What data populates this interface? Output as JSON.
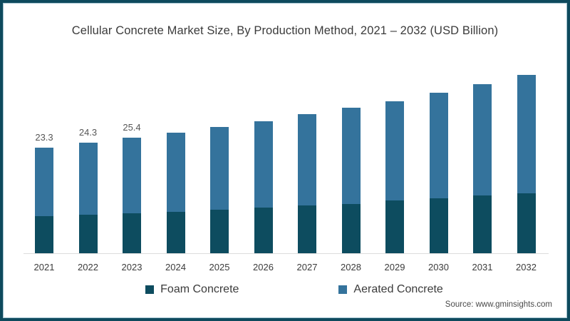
{
  "title": "Cellular Concrete Market Size, By Production Method, 2021 – 2032 (USD Billion)",
  "source": "Source: www.gminsights.com",
  "colors": {
    "frame": "#0e4a5d",
    "foam": "#0d4c5f",
    "aerated": "#34739c",
    "axis_line": "#dcdcdc"
  },
  "legend": {
    "items": [
      {
        "label": "Foam Concrete",
        "color": "#0d4c5f"
      },
      {
        "label": "Aerated Concrete",
        "color": "#34739c"
      }
    ]
  },
  "chart_data": {
    "type": "bar",
    "stacked": true,
    "title": "Cellular Concrete Market Size, By Production Method, 2021 – 2032 (USD Billion)",
    "xlabel": "",
    "ylabel": "USD Billion",
    "ylim": [
      0,
      42
    ],
    "grid": false,
    "legend_position": "bottom",
    "categories": [
      "2021",
      "2022",
      "2023",
      "2024",
      "2025",
      "2026",
      "2027",
      "2028",
      "2029",
      "2030",
      "2031",
      "2032"
    ],
    "series": [
      {
        "name": "Foam Concrete",
        "color": "#0d4c5f",
        "values": [
          8.2,
          8.5,
          8.8,
          9.1,
          9.6,
          10.0,
          10.5,
          10.8,
          11.6,
          12.1,
          12.7,
          13.2
        ]
      },
      {
        "name": "Aerated Concrete",
        "color": "#34739c",
        "values": [
          15.1,
          15.8,
          16.6,
          17.5,
          18.2,
          19.1,
          20.1,
          21.2,
          21.9,
          23.2,
          24.5,
          26.1
        ]
      }
    ],
    "totals": [
      23.3,
      24.3,
      25.4,
      26.6,
      27.8,
      29.1,
      30.6,
      32.0,
      33.5,
      35.3,
      37.2,
      39.3
    ],
    "value_labels": [
      "23.3",
      "24.3",
      "25.4",
      null,
      null,
      null,
      null,
      null,
      null,
      null,
      null,
      null
    ]
  }
}
